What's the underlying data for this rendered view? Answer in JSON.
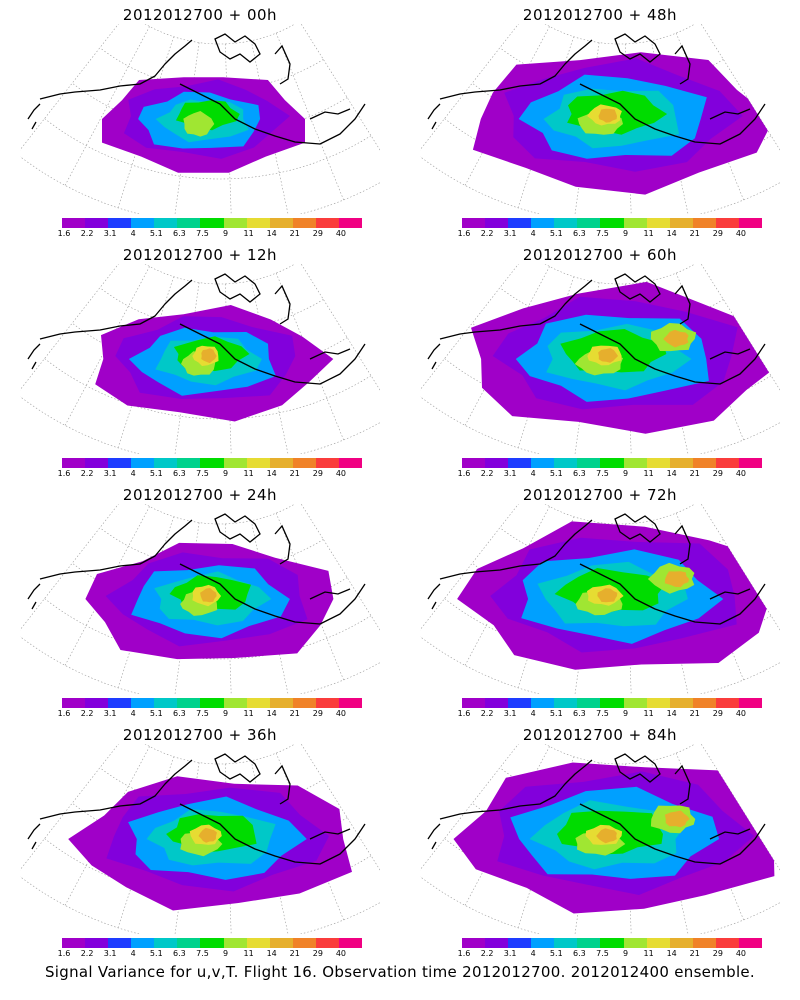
{
  "panels": [
    {
      "title": "2012012700 + 00h",
      "spread": 0.35,
      "hot": 1
    },
    {
      "title": "2012012700 + 12h",
      "spread": 0.5,
      "hot": 2
    },
    {
      "title": "2012012700 + 24h",
      "spread": 0.6,
      "hot": 2
    },
    {
      "title": "2012012700 + 36h",
      "spread": 0.75,
      "hot": 2
    },
    {
      "title": "2012012700 + 48h",
      "spread": 0.85,
      "hot": 2
    },
    {
      "title": "2012012700 + 60h",
      "spread": 0.92,
      "hot": 3
    },
    {
      "title": "2012012700 + 72h",
      "spread": 0.96,
      "hot": 3
    },
    {
      "title": "2012012700 + 84h",
      "spread": 1.0,
      "hot": 3
    }
  ],
  "colorbar": {
    "colors": [
      "#a000c8",
      "#8200dc",
      "#1e3cff",
      "#00a0ff",
      "#00c8c8",
      "#00d28c",
      "#00dc00",
      "#a0e632",
      "#e6dc32",
      "#e6af2d",
      "#f08228",
      "#fa3c3c",
      "#f00082"
    ],
    "labels": [
      "1.6",
      "2.2",
      "3.1",
      "4",
      "5.1",
      "6.3",
      "7.5",
      "9",
      "11",
      "14",
      "21",
      "29",
      "40"
    ]
  },
  "footer": "Signal Variance for u,v,T. Flight 16. Observation time 2012012700. 2012012400 ensemble."
}
